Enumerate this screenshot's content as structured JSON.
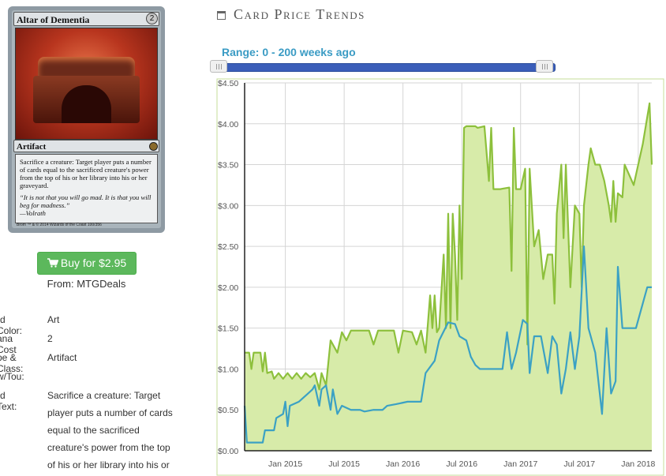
{
  "card": {
    "name": "Altar of Dementia",
    "cost": "2",
    "type_line": "Artifact",
    "rules_text": "Sacrifice a creature: Target player puts a number of cards equal to the sacrificed creature's power from the top of his or her library into his or her graveyard.",
    "flavor": "“It is not that you will go mad. It is that you will beg for madness.”",
    "flavor_author": "—Volrath",
    "artist": "Brom",
    "copyright": "™ & © 2014 Wizards of the Coast 100/356"
  },
  "buy": {
    "label": "Buy for $2.95",
    "icon": "cart-icon",
    "color": "#5cb85c"
  },
  "from_text": "From: MTGDeals",
  "details": [
    {
      "label": "rd Color:",
      "value": "Art"
    },
    {
      "label": "ana Cost",
      "value": "2"
    },
    {
      "label": "pe & Class:",
      "value": "Artifact"
    },
    {
      "label": "w/Tou:",
      "value": ""
    },
    {
      "label": "rd Text:",
      "value": ""
    }
  ],
  "card_text_lines": [
    "Sacrifice a creature: Target",
    "player puts a number of cards",
    "equal to the sacrificed",
    "creature's power from the top",
    "of his or her library into his or"
  ],
  "section": {
    "title": "Card Price Trends",
    "icon": "calendar-icon"
  },
  "range_label": "Range: 0 - 200 weeks ago",
  "slider": {
    "min_weeks": 0,
    "max_weeks": 200,
    "accent": "#3b5eb9"
  },
  "chart_data": {
    "type": "line",
    "ylim": [
      0,
      4.5
    ],
    "y_ticks": [
      "$0.00",
      "$0.50",
      "$1.00",
      "$1.50",
      "$2.00",
      "$2.50",
      "$3.00",
      "$3.50",
      "$4.00",
      "$4.50"
    ],
    "x_ticks": [
      "Jan 2015",
      "Jul 2015",
      "Jan 2016",
      "Jul 2016",
      "Jan 2017",
      "Jul 2017",
      "Jan 2018"
    ],
    "x_tick_weeks": [
      18,
      44,
      70,
      96,
      122,
      148,
      174
    ],
    "grid": true,
    "colors": {
      "green": "#8dc03c",
      "green_fill": "#d7eba9",
      "blue": "#3ba1c4"
    },
    "series": [
      {
        "color": "green",
        "points": [
          [
            0,
            1.2
          ],
          [
            2,
            1.2
          ],
          [
            3,
            1.0
          ],
          [
            4,
            1.2
          ],
          [
            7,
            1.2
          ],
          [
            8,
            0.97
          ],
          [
            9,
            1.2
          ],
          [
            10,
            0.95
          ],
          [
            12,
            0.97
          ],
          [
            13,
            0.88
          ],
          [
            15,
            0.95
          ],
          [
            17,
            0.88
          ],
          [
            19,
            0.95
          ],
          [
            21,
            0.88
          ],
          [
            23,
            0.95
          ],
          [
            25,
            0.88
          ],
          [
            27,
            0.95
          ],
          [
            29,
            0.9
          ],
          [
            31,
            0.95
          ],
          [
            33,
            0.75
          ],
          [
            34,
            0.95
          ],
          [
            36,
            0.8
          ],
          [
            38,
            1.35
          ],
          [
            41,
            1.2
          ],
          [
            43,
            1.45
          ],
          [
            45,
            1.35
          ],
          [
            47,
            1.47
          ],
          [
            55,
            1.47
          ],
          [
            57,
            1.3
          ],
          [
            59,
            1.47
          ],
          [
            66,
            1.47
          ],
          [
            68,
            1.2
          ],
          [
            70,
            1.47
          ],
          [
            74,
            1.45
          ],
          [
            76,
            1.3
          ],
          [
            78,
            1.47
          ],
          [
            80,
            1.2
          ],
          [
            82,
            1.9
          ],
          [
            83,
            1.5
          ],
          [
            84,
            1.9
          ],
          [
            85,
            1.45
          ],
          [
            86,
            1.5
          ],
          [
            88,
            2.4
          ],
          [
            89,
            1.5
          ],
          [
            90,
            2.9
          ],
          [
            91,
            1.5
          ],
          [
            92,
            2.9
          ],
          [
            93,
            2.4
          ],
          [
            94,
            1.6
          ],
          [
            95,
            3.0
          ],
          [
            96,
            2.1
          ],
          [
            97,
            3.95
          ],
          [
            98,
            3.97
          ],
          [
            102,
            3.97
          ],
          [
            103,
            3.95
          ],
          [
            106,
            3.97
          ],
          [
            108,
            3.3
          ],
          [
            109,
            3.95
          ],
          [
            110,
            3.2
          ],
          [
            113,
            3.2
          ],
          [
            117,
            3.22
          ],
          [
            118,
            2.2
          ],
          [
            119,
            3.95
          ],
          [
            120,
            3.2
          ],
          [
            122,
            3.2
          ],
          [
            124,
            3.45
          ],
          [
            125,
            1.3
          ],
          [
            126,
            3.45
          ],
          [
            128,
            2.5
          ],
          [
            130,
            2.7
          ],
          [
            132,
            2.1
          ],
          [
            134,
            2.4
          ],
          [
            136,
            2.4
          ],
          [
            137,
            1.8
          ],
          [
            138,
            2.9
          ],
          [
            140,
            3.5
          ],
          [
            141,
            2.6
          ],
          [
            142,
            3.5
          ],
          [
            144,
            2.0
          ],
          [
            146,
            3.0
          ],
          [
            148,
            2.9
          ],
          [
            149,
            2.0
          ],
          [
            150,
            3.0
          ],
          [
            152,
            3.5
          ],
          [
            153,
            3.7
          ],
          [
            155,
            3.5
          ],
          [
            157,
            3.5
          ],
          [
            159,
            3.3
          ],
          [
            161,
            3.0
          ],
          [
            162,
            2.8
          ],
          [
            163,
            3.3
          ],
          [
            164,
            2.8
          ],
          [
            165,
            3.15
          ],
          [
            167,
            3.1
          ],
          [
            168,
            3.5
          ],
          [
            172,
            3.25
          ],
          [
            176,
            3.75
          ],
          [
            179,
            4.25
          ],
          [
            180,
            3.5
          ]
        ]
      },
      {
        "color": "blue",
        "points": [
          [
            0,
            0.55
          ],
          [
            1,
            0.1
          ],
          [
            8,
            0.1
          ],
          [
            9,
            0.25
          ],
          [
            13,
            0.25
          ],
          [
            14,
            0.4
          ],
          [
            17,
            0.45
          ],
          [
            18,
            0.6
          ],
          [
            19,
            0.3
          ],
          [
            20,
            0.55
          ],
          [
            24,
            0.6
          ],
          [
            28,
            0.7
          ],
          [
            30,
            0.75
          ],
          [
            31,
            0.8
          ],
          [
            33,
            0.55
          ],
          [
            34,
            0.75
          ],
          [
            36,
            0.8
          ],
          [
            38,
            0.5
          ],
          [
            39,
            0.75
          ],
          [
            41,
            0.45
          ],
          [
            43,
            0.55
          ],
          [
            47,
            0.5
          ],
          [
            51,
            0.5
          ],
          [
            53,
            0.48
          ],
          [
            57,
            0.5
          ],
          [
            61,
            0.5
          ],
          [
            63,
            0.55
          ],
          [
            67,
            0.57
          ],
          [
            72,
            0.6
          ],
          [
            78,
            0.6
          ],
          [
            80,
            0.95
          ],
          [
            84,
            1.1
          ],
          [
            86,
            1.35
          ],
          [
            90,
            1.57
          ],
          [
            93,
            1.55
          ],
          [
            95,
            1.4
          ],
          [
            98,
            1.35
          ],
          [
            100,
            1.15
          ],
          [
            102,
            1.05
          ],
          [
            104,
            1.0
          ],
          [
            110,
            1.0
          ],
          [
            114,
            1.0
          ],
          [
            116,
            1.45
          ],
          [
            118,
            1.0
          ],
          [
            120,
            1.2
          ],
          [
            123,
            1.6
          ],
          [
            125,
            1.55
          ],
          [
            126,
            0.95
          ],
          [
            128,
            1.4
          ],
          [
            131,
            1.4
          ],
          [
            134,
            0.95
          ],
          [
            136,
            1.4
          ],
          [
            138,
            1.3
          ],
          [
            140,
            0.7
          ],
          [
            142,
            1.0
          ],
          [
            144,
            1.45
          ],
          [
            146,
            1.0
          ],
          [
            148,
            1.4
          ],
          [
            150,
            2.5
          ],
          [
            152,
            1.5
          ],
          [
            155,
            1.2
          ],
          [
            158,
            0.45
          ],
          [
            160,
            1.5
          ],
          [
            162,
            0.7
          ],
          [
            164,
            0.85
          ],
          [
            165,
            2.25
          ],
          [
            167,
            1.5
          ],
          [
            173,
            1.5
          ],
          [
            178,
            2.0
          ],
          [
            180,
            2.0
          ]
        ]
      }
    ]
  }
}
